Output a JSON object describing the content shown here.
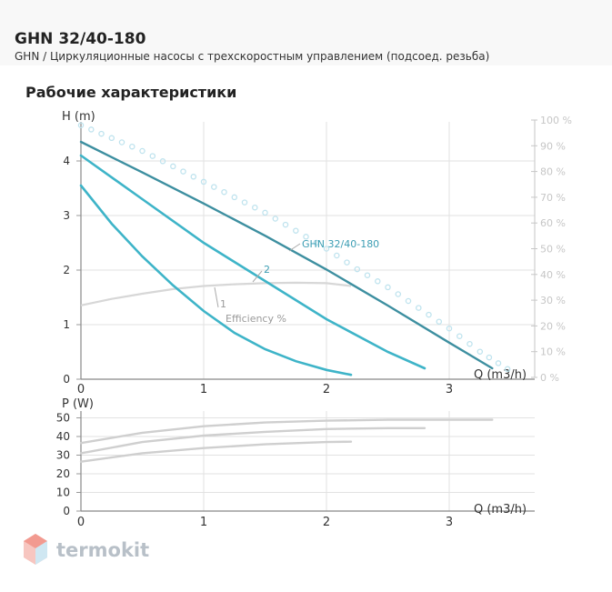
{
  "header": {
    "title": "GHN 32/40-180",
    "subtitle": "GHN / Циркуляционные насосы с трехскоростным управлением (подсоед. резьба)"
  },
  "section_title": "Рабочие характеристики",
  "watermark": {
    "text": "termokit"
  },
  "colors": {
    "curve": "#3eb4c8",
    "curve_main": "#3d8fa0",
    "efficiency": "#d7d7d7",
    "pct_axis": "#c6c6c6",
    "grid": "#e2e2e2",
    "label_blue": "#3b9db3",
    "label_grey": "#9a9a9a"
  },
  "chart_data": [
    {
      "type": "line",
      "xlabel": "Q (m3/h)",
      "ylabel": "H (m)",
      "xlim": [
        0,
        3.6
      ],
      "ylim": [
        0,
        4.8
      ],
      "x_ticks": [
        "0",
        "1",
        "2",
        "3"
      ],
      "y_ticks": [
        "0",
        "1",
        "2",
        "3",
        "4"
      ],
      "secondary_axis": {
        "label": "",
        "ticks": [
          "0 %",
          "10 %",
          "20 %",
          "30 %",
          "40 %",
          "50 %",
          "60 %",
          "70 %",
          "80 %",
          "90 %",
          "100 %"
        ]
      },
      "grid": true,
      "series": [
        {
          "name": "GHN 32/40-180",
          "x": [
            0,
            0.5,
            1,
            1.5,
            2,
            2.5,
            3,
            3.35
          ],
          "y": [
            4.35,
            3.79,
            3.22,
            2.63,
            2.01,
            1.35,
            0.67,
            0.2
          ]
        },
        {
          "name": "2",
          "x": [
            0,
            0.5,
            1,
            1.5,
            2,
            2.5,
            2.8
          ],
          "y": [
            4.1,
            3.3,
            2.5,
            1.8,
            1.1,
            0.5,
            0.2
          ]
        },
        {
          "name": "1",
          "x": [
            0,
            0.25,
            0.5,
            0.75,
            1,
            1.25,
            1.5,
            1.75,
            2,
            2.2
          ],
          "y": [
            3.55,
            2.85,
            2.25,
            1.72,
            1.25,
            0.85,
            0.55,
            0.33,
            0.17,
            0.08
          ]
        },
        {
          "name": "Efficiency %",
          "axis": "secondary",
          "x": [
            0,
            0.25,
            0.5,
            0.75,
            1,
            1.25,
            1.5,
            1.75,
            2,
            2.2
          ],
          "y": [
            28,
            30.5,
            32.5,
            34.3,
            35.5,
            36.2,
            36.6,
            36.8,
            36.6,
            35.5
          ]
        },
        {
          "name": "",
          "axis": "secondary",
          "style": "dotted",
          "x": [
            0,
            0.25,
            0.5,
            0.75,
            1,
            1.25,
            1.5,
            1.75,
            2,
            2.25,
            2.5,
            2.75,
            3,
            3.25,
            3.55
          ],
          "y": [
            98,
            93,
            88,
            82,
            76,
            70,
            64,
            57,
            50,
            42,
            35,
            27,
            19,
            10,
            1
          ]
        }
      ],
      "annotations": [
        "GHN 32/40-180",
        "2",
        "1",
        "Efficiency %"
      ]
    },
    {
      "type": "line",
      "xlabel": "Q (m3/h)",
      "ylabel": "P (W)",
      "xlim": [
        0,
        3.6
      ],
      "ylim": [
        0,
        55
      ],
      "x_ticks": [
        "0",
        "1",
        "2",
        "3"
      ],
      "y_ticks": [
        "0",
        "10",
        "20",
        "30",
        "40",
        "50"
      ],
      "grid": true,
      "series": [
        {
          "name": "",
          "x": [
            0,
            0.5,
            1,
            1.5,
            2,
            2.5,
            3,
            3.35
          ],
          "y": [
            36.5,
            42,
            45.5,
            47.5,
            48.5,
            49,
            49,
            49
          ]
        },
        {
          "name": "",
          "x": [
            0,
            0.5,
            1,
            1.5,
            2,
            2.5,
            2.8
          ],
          "y": [
            31,
            37,
            40.5,
            42.5,
            44,
            44.5,
            44.5
          ]
        },
        {
          "name": "",
          "x": [
            0,
            0.5,
            1,
            1.5,
            2,
            2.2
          ],
          "y": [
            26.5,
            31,
            33.8,
            35.8,
            37,
            37.2
          ]
        }
      ]
    }
  ]
}
